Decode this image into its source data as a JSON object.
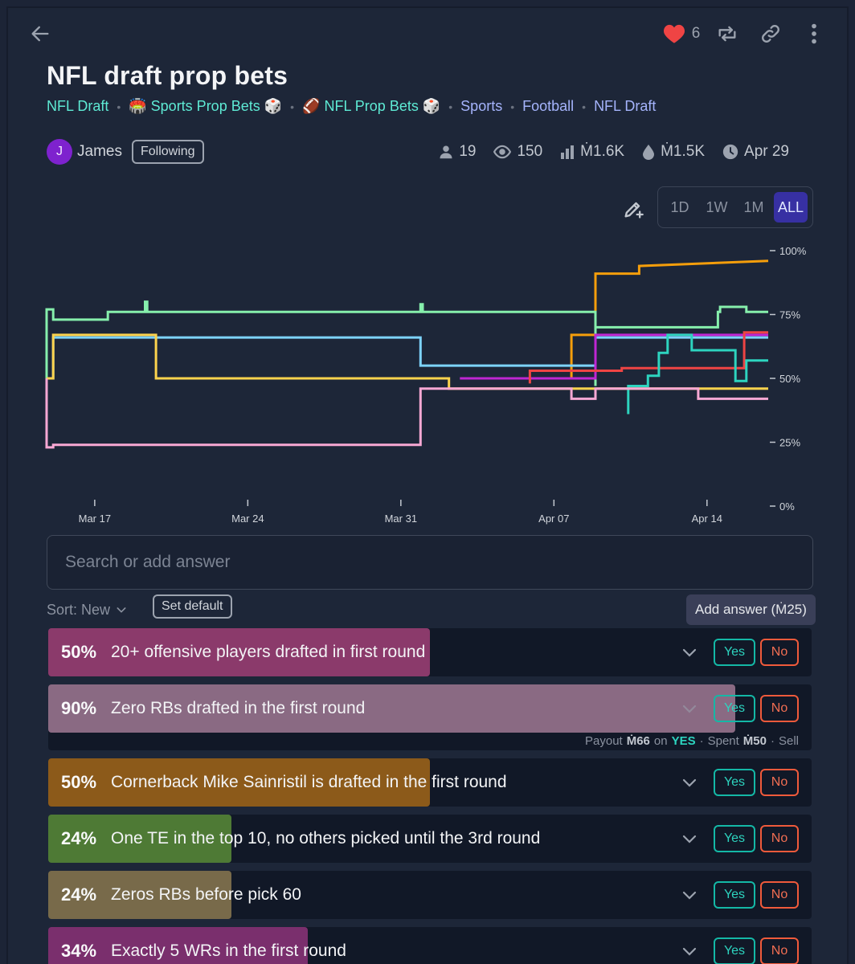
{
  "header": {
    "like_count": "6",
    "title": "NFL draft prop bets"
  },
  "tags": [
    {
      "label": "NFL Draft"
    },
    {
      "label": "🏟️ Sports Prop Bets 🎲"
    },
    {
      "label": "🏈 NFL Prop Bets 🎲"
    },
    {
      "label": "Sports"
    },
    {
      "label": "Football"
    },
    {
      "label": "NFL Draft"
    }
  ],
  "author": {
    "initial": "J",
    "name": "James",
    "follow_label": "Following"
  },
  "stats": {
    "traders": "19",
    "views": "150",
    "volume": "Ṁ1.6K",
    "liquidity": "Ṁ1.5K",
    "close_date": "Apr 29"
  },
  "time_range": {
    "options": [
      "1D",
      "1W",
      "1M",
      "ALL"
    ],
    "selected": "ALL"
  },
  "chart_data": {
    "type": "line",
    "x_ticks": [
      "Mar 17",
      "Mar 24",
      "Mar 31",
      "Apr 07",
      "Apr 14"
    ],
    "y_ticks": [
      "100%",
      "75%",
      "50%",
      "25%",
      "0%"
    ],
    "ylim": [
      0,
      100
    ],
    "xlim_days": [
      -2.2,
      30.8
    ],
    "x_tick_days": [
      0,
      7,
      14,
      21,
      28
    ],
    "series": [
      {
        "name": "orange",
        "color": "#f59e0b",
        "points": [
          [
            21.8,
            50
          ],
          [
            21.8,
            67
          ],
          [
            22.9,
            67
          ],
          [
            22.9,
            91
          ],
          [
            24.9,
            91
          ],
          [
            24.9,
            94
          ],
          [
            30.8,
            96
          ]
        ]
      },
      {
        "name": "green",
        "color": "#86efac",
        "points": [
          [
            -2.2,
            50
          ],
          [
            -2.2,
            77
          ],
          [
            -1.9,
            77
          ],
          [
            -1.9,
            73
          ],
          [
            0.6,
            73
          ],
          [
            0.6,
            76
          ],
          [
            2.3,
            76
          ],
          [
            2.3,
            80
          ],
          [
            2.4,
            80
          ],
          [
            2.4,
            76
          ],
          [
            14.9,
            76
          ],
          [
            14.9,
            79
          ],
          [
            15,
            79
          ],
          [
            15,
            76
          ],
          [
            22.9,
            76
          ],
          [
            22.9,
            47
          ],
          [
            22.9,
            70
          ],
          [
            28.5,
            70
          ],
          [
            28.5,
            76
          ],
          [
            28.6,
            76
          ],
          [
            28.6,
            78
          ],
          [
            29.8,
            78
          ],
          [
            29.8,
            76
          ],
          [
            30.8,
            76
          ]
        ]
      },
      {
        "name": "blue",
        "color": "#7dd3fc",
        "points": [
          [
            -2.2,
            50
          ],
          [
            -1.9,
            50
          ],
          [
            -1.9,
            66
          ],
          [
            14.9,
            66
          ],
          [
            14.9,
            55
          ],
          [
            22.9,
            55
          ],
          [
            22.9,
            66
          ],
          [
            30.8,
            66
          ]
        ]
      },
      {
        "name": "yellow",
        "color": "#fcd34d",
        "points": [
          [
            -2.2,
            50
          ],
          [
            -1.9,
            50
          ],
          [
            -1.9,
            67
          ],
          [
            1.2,
            67
          ],
          [
            1.2,
            67
          ],
          [
            2.8,
            67
          ],
          [
            2.8,
            50
          ],
          [
            16.2,
            50
          ],
          [
            16.2,
            46
          ],
          [
            30.8,
            46
          ]
        ]
      },
      {
        "name": "purple",
        "color": "#c026d3",
        "points": [
          [
            16.7,
            50
          ],
          [
            22.9,
            50
          ],
          [
            22.9,
            67
          ],
          [
            30.8,
            67
          ]
        ]
      },
      {
        "name": "red",
        "color": "#ef4444",
        "points": [
          [
            19.9,
            48
          ],
          [
            19.9,
            53
          ],
          [
            24.1,
            53
          ],
          [
            24.1,
            54
          ],
          [
            27,
            54
          ],
          [
            27,
            54
          ],
          [
            29.7,
            54
          ],
          [
            29.7,
            68
          ],
          [
            30.8,
            68
          ]
        ]
      },
      {
        "name": "teal",
        "color": "#2dd4bf",
        "points": [
          [
            24.4,
            45
          ],
          [
            24.4,
            36
          ],
          [
            24.4,
            47
          ],
          [
            25.3,
            47
          ],
          [
            25.3,
            51
          ],
          [
            25.8,
            51
          ],
          [
            25.8,
            60
          ],
          [
            26.2,
            60
          ],
          [
            26.2,
            67
          ],
          [
            27.3,
            67
          ],
          [
            27.3,
            61
          ],
          [
            29.3,
            61
          ],
          [
            29.3,
            49
          ],
          [
            29.8,
            49
          ],
          [
            29.8,
            57
          ],
          [
            30.8,
            57
          ]
        ]
      },
      {
        "name": "pink",
        "color": "#f9a8d4",
        "points": [
          [
            -2.2,
            25
          ],
          [
            -2.2,
            50
          ],
          [
            -2.2,
            23
          ],
          [
            -1.9,
            23
          ],
          [
            -1.9,
            24
          ],
          [
            14.9,
            24
          ],
          [
            14.9,
            46
          ],
          [
            21.8,
            46
          ],
          [
            21.8,
            42
          ],
          [
            22.9,
            42
          ],
          [
            22.9,
            46
          ],
          [
            27.6,
            46
          ],
          [
            27.6,
            42
          ],
          [
            30.8,
            42
          ]
        ]
      }
    ]
  },
  "search": {
    "placeholder": "Search or add answer"
  },
  "sort": {
    "label": "Sort: New",
    "set_default_label": "Set default"
  },
  "add_answer_label": "Add answer (Ṁ25)",
  "answers": [
    {
      "pct": "50%",
      "text": "20+ offensive players drafted in first round",
      "prob": 0.5,
      "color": "#8b3a6b"
    },
    {
      "pct": "90%",
      "text": "Zero RBs drafted in the first round",
      "prob": 0.9,
      "color": "#8a6a83",
      "payout": {
        "label": "Payout",
        "amount": "Ṁ66",
        "on": "on",
        "outcome": "YES",
        "spent_label": "Spent",
        "spent": "Ṁ50",
        "sell": "Sell"
      }
    },
    {
      "pct": "50%",
      "text": "Cornerback Mike Sainristil is drafted in the first round",
      "prob": 0.5,
      "color": "#8c5a1a"
    },
    {
      "pct": "24%",
      "text": "One TE in the top 10, no others picked until the 3rd round",
      "prob": 0.24,
      "color": "#4e7a35"
    },
    {
      "pct": "24%",
      "text": "Zeros RBs before pick 60",
      "prob": 0.24,
      "color": "#786a4a"
    },
    {
      "pct": "34%",
      "text": "Exactly 5 WRs in the first round",
      "prob": 0.34,
      "color": "#7a2f6d"
    }
  ],
  "buttons": {
    "yes": "Yes",
    "no": "No"
  }
}
